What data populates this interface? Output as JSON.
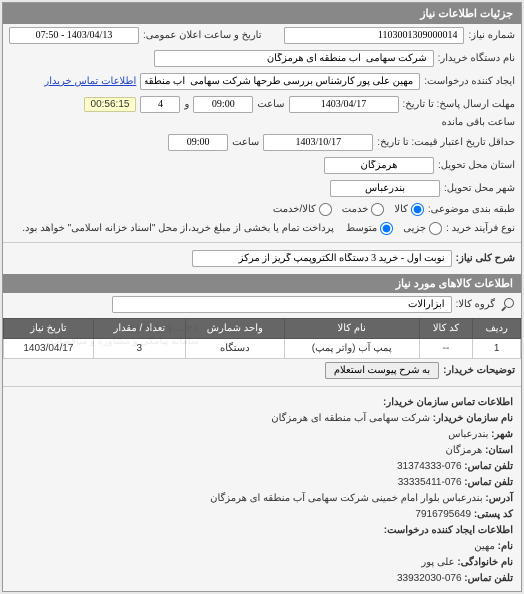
{
  "panel": {
    "title": "جزئیات اطلاعات نیاز"
  },
  "form": {
    "need_no_label": "شماره نیاز:",
    "need_no": "1103001309000014",
    "announce_label": "تاریخ و ساعت اعلان عمومی:",
    "announce_value": "1403/04/13 - 07:50",
    "buyer_device_label": "نام دستگاه خریدار:",
    "buyer_device": "شرکت سهامی  آب منطقه ای هرمزگان",
    "requester_label": "ایجاد کننده درخواست:",
    "requester": "مهین علی پور کارشناس بررسی طرحها شرکت سهامی  آب منطقه ای هرمزگا",
    "contact_link": "اطلاعات تماس خریدار",
    "deadline_label": "مهلت ارسال پاسخ: تا تاریخ:",
    "deadline_date": "1403/04/17",
    "time_label": "ساعت",
    "deadline_time": "09:00",
    "and_label": "و",
    "days_left": "4",
    "remaining_label": "ساعت باقی مانده",
    "timer": "00:56:15",
    "validity_label": "حداقل تاریخ اعتبار قیمت: تا تاریخ:",
    "validity_date": "1403/10/17",
    "validity_time": "09:00",
    "province_label": "استان محل تحویل:",
    "province": "هرمزگان",
    "city_label": "شهر محل تحویل:",
    "city": "بندرعباس",
    "subject_pkg_label": "طبقه بندی موضوعی:",
    "radios_subject": {
      "goods": "کالا",
      "service": "خدمت",
      "goods_service": "کالا/خدمت"
    },
    "process_label": "نوع فرآیند خرید :",
    "radios_process": {
      "partial": "جزیی",
      "medium": "متوسط"
    },
    "process_note": "پرداخت تمام یا بخشی از مبلغ خرید،از محل \"اسناد خزانه اسلامی\" خواهد بود.",
    "desc_label": "شرح کلی نیاز:",
    "desc_value": "نوبت اول - خرید 3 دستگاه الکتروپمپ گریز از مرکز"
  },
  "goods_section": {
    "title": "اطلاعات کالاهای مورد نیاز",
    "group_label": "گروه کالا:",
    "group_value": "ابزارآلات",
    "columns": [
      "ردیف",
      "کد کالا",
      "نام کالا",
      "واحد شمارش",
      "تعداد / مقدار",
      "تاریخ نیاز"
    ],
    "rows": [
      [
        "1",
        "--",
        "پمپ آب (واتر پمپ)",
        "دستگاه",
        "3",
        "1403/04/17"
      ]
    ],
    "attach_btn": "به شرح پیوست استعلام",
    "purchaser_desc_label": "توضیحات خریدار:"
  },
  "contact_section": {
    "title": "اطلاعات تماس سازمان خریدار:",
    "org_label": "نام سازمان خریدار:",
    "org": "شرکت سهامی آب منطقه ای هرمزگان",
    "city_label": "شهر:",
    "city": "بندرعباس",
    "province_label": "استان:",
    "province": "هرمزگان",
    "phone_label": "تلفن تماس:",
    "phone": "076-31374333",
    "fax_label": "تلفن تماس:",
    "fax": "076-33335411",
    "address_label": "آدرس:",
    "address": "بندرعباس بلوار امام خمینی شرکت سهامی آب منطقه ای هرمزگان",
    "postal_label": "کد پستی:",
    "postal": "7916795649",
    "req_creator_title": "اطلاعات ایجاد کننده درخواست:",
    "name_label": "نام:",
    "name": "مهین",
    "lname_label": "نام خانوادگی:",
    "lname": "علی پور",
    "req_phone_label": "تلفن تماس:",
    "req_phone": "076-33932030"
  },
  "watermark": "۰۲۱–۸۸۳۴۹۶۷"
}
